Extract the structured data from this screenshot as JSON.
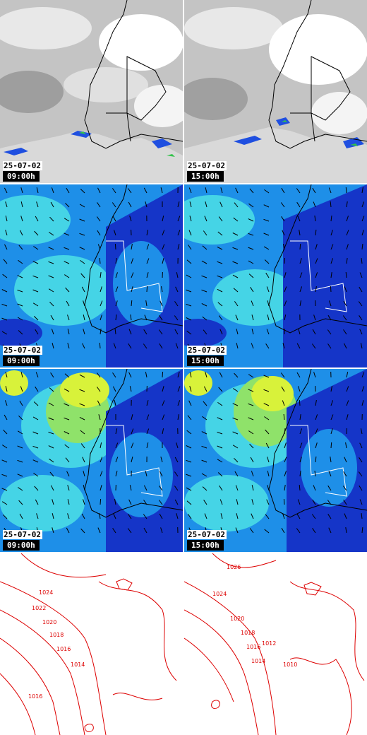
{
  "colors": {
    "cloud_gray": "#b8b8b8",
    "rain_blue": "#1f4fe0",
    "rain_green": "#33c24a",
    "wind_dark": "#1535c8",
    "wind_mid": "#1e8fe8",
    "wind_light": "#45d4e6",
    "wind_green": "#8fe26a",
    "wind_yellow": "#d8f23a",
    "isobar_red": "#dd0000"
  },
  "panels": [
    {
      "row": "clouds",
      "date": "25-07-02",
      "time": "09:00h"
    },
    {
      "row": "clouds",
      "date": "25-07-02",
      "time": "15:00h"
    },
    {
      "row": "wind-low",
      "date": "25-07-02",
      "time": "09:00h"
    },
    {
      "row": "wind-low",
      "date": "25-07-02",
      "time": "15:00h"
    },
    {
      "row": "wind-high",
      "date": "25-07-02",
      "time": "09:00h"
    },
    {
      "row": "wind-high",
      "date": "25-07-02",
      "time": "15:00h"
    },
    {
      "row": "pressure",
      "isobars": [
        "1024",
        "1022",
        "1020",
        "1018",
        "1016",
        "1014",
        "1016"
      ]
    },
    {
      "row": "pressure",
      "isobars": [
        "1026",
        "1024",
        "1020",
        "1018",
        "1016",
        "1014",
        "1012",
        "1010"
      ]
    }
  ]
}
